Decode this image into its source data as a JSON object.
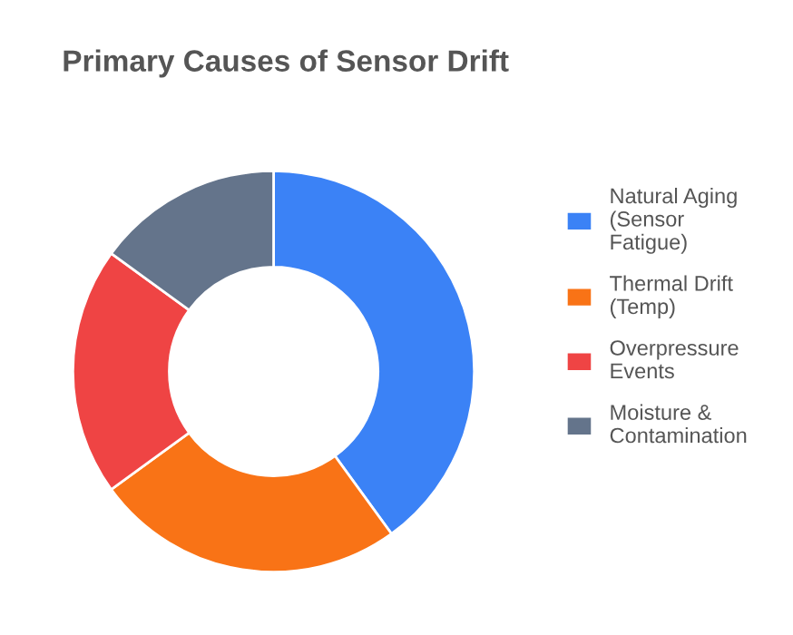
{
  "chart_data": {
    "type": "donut",
    "title": "Primary Causes of Sensor Drift",
    "categories": [
      "Natural Aging (Sensor Fatigue)",
      "Thermal Drift (Temp)",
      "Overpressure Events",
      "Moisture & Contamination"
    ],
    "values": [
      40,
      25,
      20,
      15
    ],
    "colors": [
      "#3b82f6",
      "#f97316",
      "#ef4444",
      "#64748b"
    ],
    "legend": "right"
  }
}
